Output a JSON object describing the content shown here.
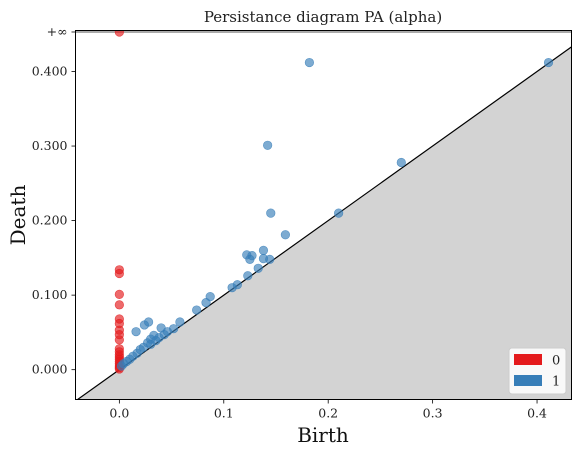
{
  "chart_data": {
    "type": "scatter",
    "title": "Persistance diagram PA (alpha)",
    "xlabel": "Birth",
    "ylabel": "Death",
    "xlim": [
      -0.042,
      0.433
    ],
    "ylim": [
      -0.04,
      0.455
    ],
    "xticks": [
      {
        "value": 0.0,
        "label": "0.0"
      },
      {
        "value": 0.1,
        "label": "0.1"
      },
      {
        "value": 0.2,
        "label": "0.2"
      },
      {
        "value": 0.3,
        "label": "0.3"
      },
      {
        "value": 0.4,
        "label": "0.4"
      }
    ],
    "yticks": [
      {
        "value": 0.0,
        "label": "0.000"
      },
      {
        "value": 0.1,
        "label": "0.100"
      },
      {
        "value": 0.2,
        "label": "0.200"
      },
      {
        "value": 0.3,
        "label": "0.300"
      },
      {
        "value": 0.4,
        "label": "0.400"
      }
    ],
    "infinity": {
      "value": 0.453,
      "label": "+∞"
    },
    "diagonal": true,
    "grid": false,
    "legend_position": "bottom-right",
    "series": [
      {
        "name": "0",
        "color": "#e41a1c",
        "points": [
          [
            0.0,
            0.453
          ],
          [
            0.0,
            0.134
          ],
          [
            0.0,
            0.129
          ],
          [
            0.0,
            0.101
          ],
          [
            0.0,
            0.087
          ],
          [
            0.0,
            0.068
          ],
          [
            0.0,
            0.062
          ],
          [
            0.0,
            0.053
          ],
          [
            0.0,
            0.047
          ],
          [
            0.0,
            0.04
          ],
          [
            0.0,
            0.028
          ],
          [
            0.0,
            0.024
          ],
          [
            0.0,
            0.02
          ],
          [
            0.0,
            0.017
          ],
          [
            0.0,
            0.014
          ],
          [
            0.0,
            0.011
          ],
          [
            0.0,
            0.008
          ],
          [
            0.0,
            0.005
          ],
          [
            0.0,
            0.003
          ],
          [
            0.0,
            0.001
          ]
        ]
      },
      {
        "name": "1",
        "color": "#377eb8",
        "points": [
          [
            0.182,
            0.412
          ],
          [
            0.411,
            0.412
          ],
          [
            0.142,
            0.301
          ],
          [
            0.27,
            0.278
          ],
          [
            0.145,
            0.21
          ],
          [
            0.21,
            0.21
          ],
          [
            0.159,
            0.181
          ],
          [
            0.138,
            0.16
          ],
          [
            0.122,
            0.154
          ],
          [
            0.127,
            0.153
          ],
          [
            0.125,
            0.148
          ],
          [
            0.138,
            0.149
          ],
          [
            0.144,
            0.148
          ],
          [
            0.133,
            0.136
          ],
          [
            0.123,
            0.126
          ],
          [
            0.113,
            0.114
          ],
          [
            0.108,
            0.11
          ],
          [
            0.087,
            0.098
          ],
          [
            0.083,
            0.09
          ],
          [
            0.074,
            0.08
          ],
          [
            0.058,
            0.064
          ],
          [
            0.052,
            0.055
          ],
          [
            0.046,
            0.051
          ],
          [
            0.04,
            0.056
          ],
          [
            0.043,
            0.047
          ],
          [
            0.038,
            0.043
          ],
          [
            0.033,
            0.046
          ],
          [
            0.03,
            0.041
          ],
          [
            0.028,
            0.064
          ],
          [
            0.024,
            0.06
          ],
          [
            0.016,
            0.051
          ],
          [
            0.027,
            0.036
          ],
          [
            0.023,
            0.03
          ],
          [
            0.02,
            0.027
          ],
          [
            0.017,
            0.022
          ],
          [
            0.013,
            0.018
          ],
          [
            0.01,
            0.014
          ],
          [
            0.007,
            0.011
          ],
          [
            0.004,
            0.008
          ],
          [
            0.002,
            0.005
          ],
          [
            0.035,
            0.039
          ],
          [
            0.03,
            0.034
          ]
        ]
      }
    ]
  }
}
